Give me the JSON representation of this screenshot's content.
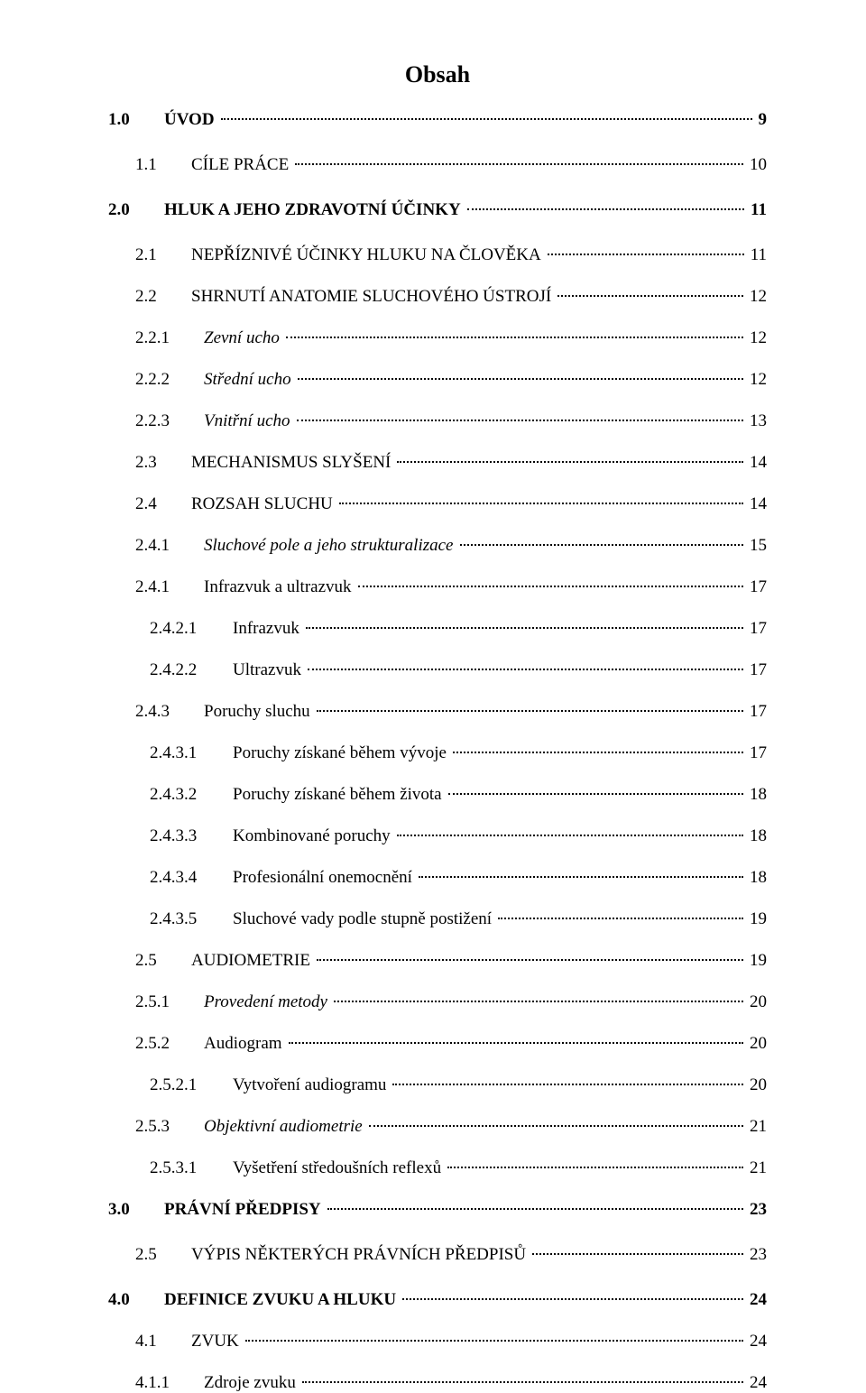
{
  "title": "Obsah",
  "rows": [
    {
      "level": 0,
      "spacing": "sp-sm",
      "num": "1.0",
      "label": "ÚVOD",
      "page": "9",
      "bold": true,
      "italic": false
    },
    {
      "level": 1,
      "spacing": "sp-big",
      "num": "1.1",
      "label": "CÍLE PRÁCE",
      "page": "10",
      "bold": false,
      "italic": false
    },
    {
      "level": 0,
      "spacing": "sp-big",
      "num": "2.0",
      "label": "HLUK A JEHO ZDRAVOTNÍ ÚČINKY",
      "page": "11",
      "bold": true,
      "italic": false
    },
    {
      "level": 1,
      "spacing": "sp-big",
      "num": "2.1",
      "label": "NEPŘÍZNIVÉ ÚČINKY HLUKU NA ČLOVĚKA",
      "page": "11",
      "bold": false,
      "italic": false
    },
    {
      "level": 1,
      "spacing": "sp-med",
      "num": "2.2",
      "label": "SHRNUTÍ ANATOMIE SLUCHOVÉHO ÚSTROJÍ",
      "page": "12",
      "bold": false,
      "italic": false
    },
    {
      "level": 2,
      "spacing": "sp-med",
      "num": "2.2.1",
      "label": "Zevní ucho",
      "page": "12",
      "bold": false,
      "italic": true
    },
    {
      "level": 2,
      "spacing": "sp-med",
      "num": "2.2.2",
      "label": "Střední ucho",
      "page": "12",
      "bold": false,
      "italic": true
    },
    {
      "level": 2,
      "spacing": "sp-med",
      "num": "2.2.3",
      "label": "Vnitřní ucho",
      "page": "13",
      "bold": false,
      "italic": true
    },
    {
      "level": 1,
      "spacing": "sp-med",
      "num": "2.3",
      "label": "MECHANISMUS SLYŠENÍ",
      "page": "14",
      "bold": false,
      "italic": false
    },
    {
      "level": 1,
      "spacing": "sp-med",
      "num": "2.4",
      "label": "ROZSAH SLUCHU",
      "page": "14",
      "bold": false,
      "italic": false
    },
    {
      "level": 2,
      "spacing": "sp-med",
      "num": "2.4.1",
      "label": "Sluchové pole a jeho strukturalizace",
      "page": "15",
      "bold": false,
      "italic": true
    },
    {
      "level": 2,
      "spacing": "sp-med",
      "num": "2.4.1",
      "label": "Infrazvuk a ultrazvuk",
      "page": "17",
      "bold": false,
      "italic": false
    },
    {
      "level": 3,
      "spacing": "sp-med",
      "num": "2.4.2.1",
      "label": "Infrazvuk",
      "page": "17",
      "bold": false,
      "italic": false
    },
    {
      "level": 3,
      "spacing": "sp-med",
      "num": "2.4.2.2",
      "label": "Ultrazvuk",
      "page": "17",
      "bold": false,
      "italic": false
    },
    {
      "level": 2,
      "spacing": "sp-med",
      "num": "2.4.3",
      "label": "Poruchy sluchu",
      "page": "17",
      "bold": false,
      "italic": false
    },
    {
      "level": 3,
      "spacing": "sp-med",
      "num": "2.4.3.1",
      "label": "Poruchy získané během vývoje",
      "page": "17",
      "bold": false,
      "italic": false
    },
    {
      "level": 3,
      "spacing": "sp-med",
      "num": "2.4.3.2",
      "label": "Poruchy získané během života",
      "page": "18",
      "bold": false,
      "italic": false
    },
    {
      "level": 3,
      "spacing": "sp-med",
      "num": "2.4.3.3",
      "label": "Kombinované poruchy",
      "page": "18",
      "bold": false,
      "italic": false
    },
    {
      "level": 3,
      "spacing": "sp-med",
      "num": "2.4.3.4",
      "label": "Profesionální onemocnění",
      "page": "18",
      "bold": false,
      "italic": false
    },
    {
      "level": 3,
      "spacing": "sp-med",
      "num": "2.4.3.5",
      "label": "Sluchové vady podle stupně postižení",
      "page": "19",
      "bold": false,
      "italic": false
    },
    {
      "level": 1,
      "spacing": "sp-med",
      "num": "2.5",
      "label": "AUDIOMETRIE",
      "page": "19",
      "bold": false,
      "italic": false
    },
    {
      "level": 2,
      "spacing": "sp-med",
      "num": "2.5.1",
      "label": "Provedení metody",
      "page": "20",
      "bold": false,
      "italic": true
    },
    {
      "level": 2,
      "spacing": "sp-med",
      "num": "2.5.2",
      "label": "Audiogram",
      "page": "20",
      "bold": false,
      "italic": false
    },
    {
      "level": 3,
      "spacing": "sp-med",
      "num": "2.5.2.1",
      "label": "Vytvoření audiogramu",
      "page": "20",
      "bold": false,
      "italic": false
    },
    {
      "level": 2,
      "spacing": "sp-med",
      "num": "2.5.3",
      "label": "Objektivní audiometrie",
      "page": "21",
      "bold": false,
      "italic": true
    },
    {
      "level": 3,
      "spacing": "sp-med",
      "num": "2.5.3.1",
      "label": "Vyšetření středoušních reflexů",
      "page": "21",
      "bold": false,
      "italic": false
    },
    {
      "level": 0,
      "spacing": "sp-med",
      "num": "3.0",
      "label": "PRÁVNÍ PŘEDPISY",
      "page": "23",
      "bold": true,
      "italic": false
    },
    {
      "level": 1,
      "spacing": "sp-big",
      "num": "2.5",
      "label": "VÝPIS NĚKTERÝCH PRÁVNÍCH PŘEDPISŮ",
      "page": "23",
      "bold": false,
      "italic": false
    },
    {
      "level": 0,
      "spacing": "sp-big",
      "num": "4.0",
      "label": "DEFINICE ZVUKU A HLUKU",
      "page": "24",
      "bold": true,
      "italic": false
    },
    {
      "level": 1,
      "spacing": "sp-med",
      "num": "4.1",
      "label": "ZVUK",
      "page": "24",
      "bold": false,
      "italic": false
    },
    {
      "level": 2,
      "spacing": "sp-med",
      "num": "4.1.1",
      "label": "Zdroje zvuku",
      "page": "24",
      "bold": false,
      "italic": false
    }
  ]
}
